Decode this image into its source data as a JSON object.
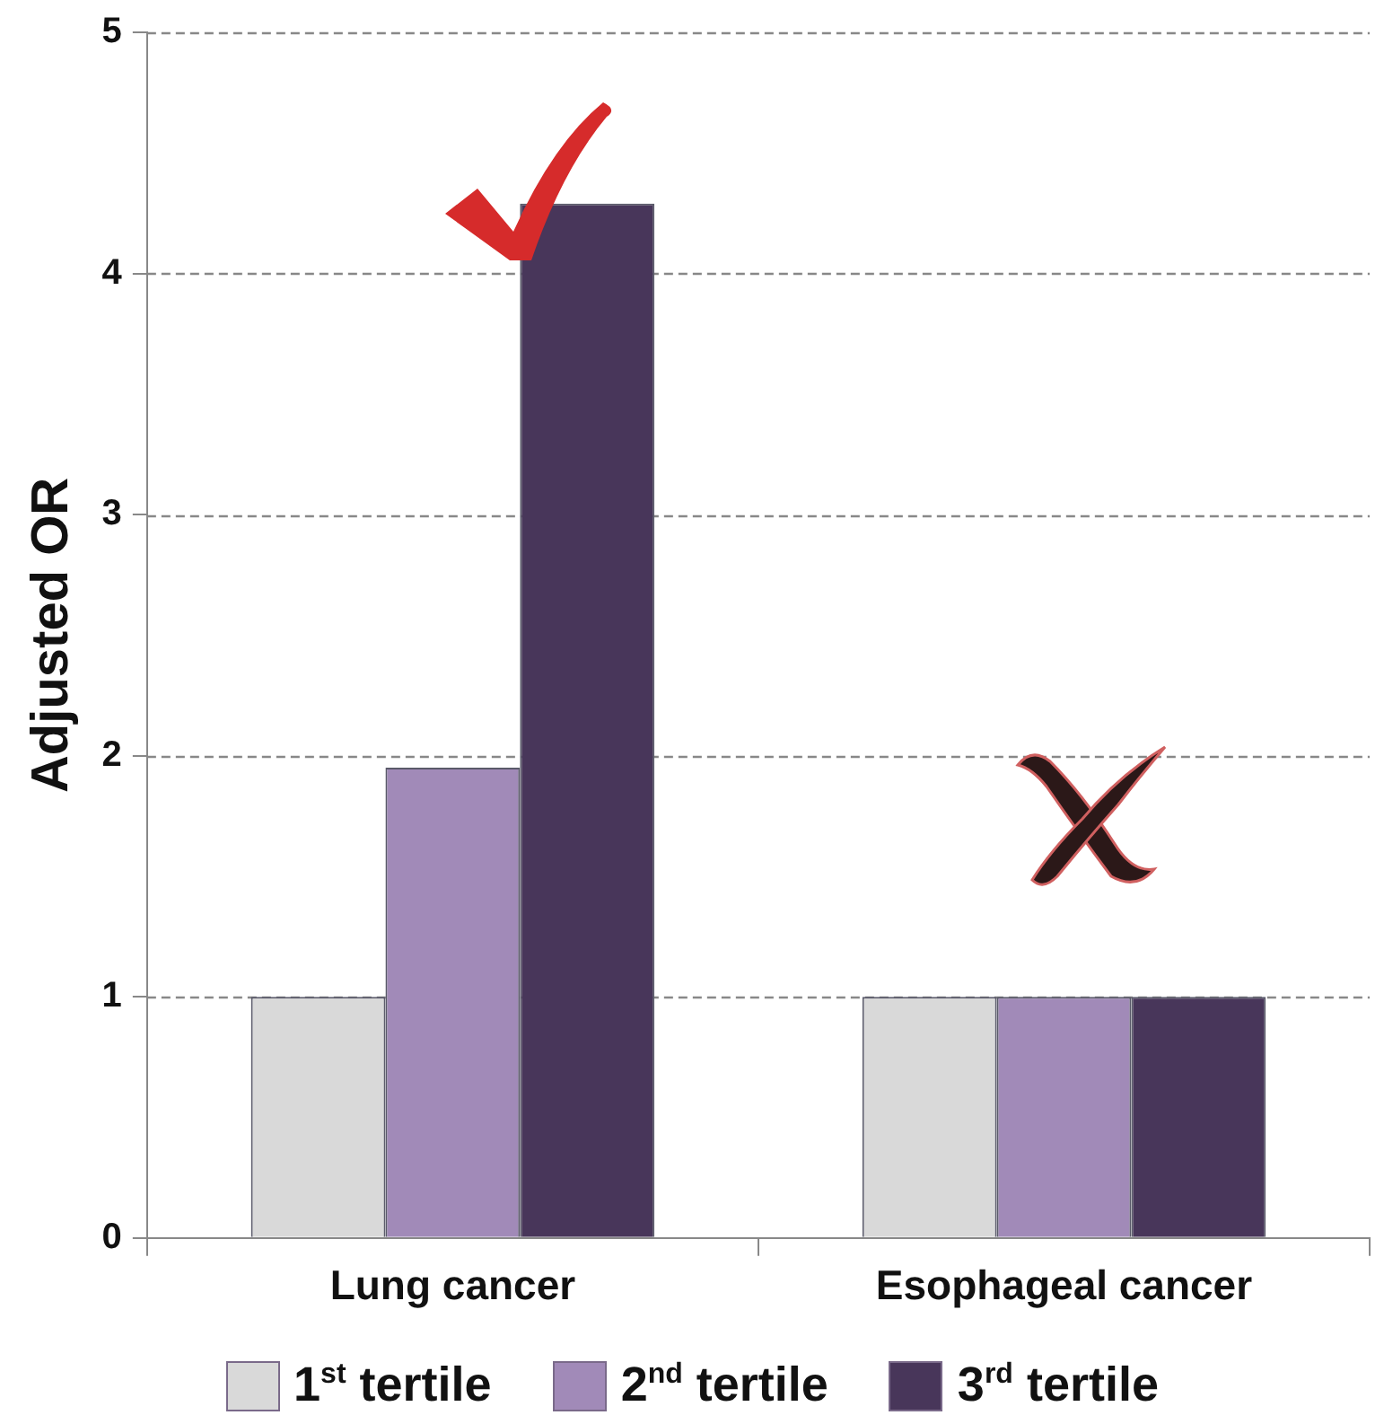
{
  "chart_data": {
    "type": "bar",
    "ylabel": "Adjusted OR",
    "categories": [
      "Lung cancer",
      "Esophageal cancer"
    ],
    "series": [
      {
        "name": "1$^{st}$ tertile",
        "color": "#d9d9d9",
        "values": [
          1,
          1
        ]
      },
      {
        "name": "2$^{nd}$ tertile",
        "color": "#a18ab8",
        "values": [
          1.95,
          1
        ]
      },
      {
        "name": "3$^{rd}$ tertile",
        "color": "#48365a",
        "values": [
          4.29,
          1
        ]
      }
    ],
    "ylim": [
      0,
      5
    ],
    "yticks": [
      0,
      1,
      2,
      3,
      4,
      5
    ],
    "grid": "y",
    "legend": "bottom"
  }
}
